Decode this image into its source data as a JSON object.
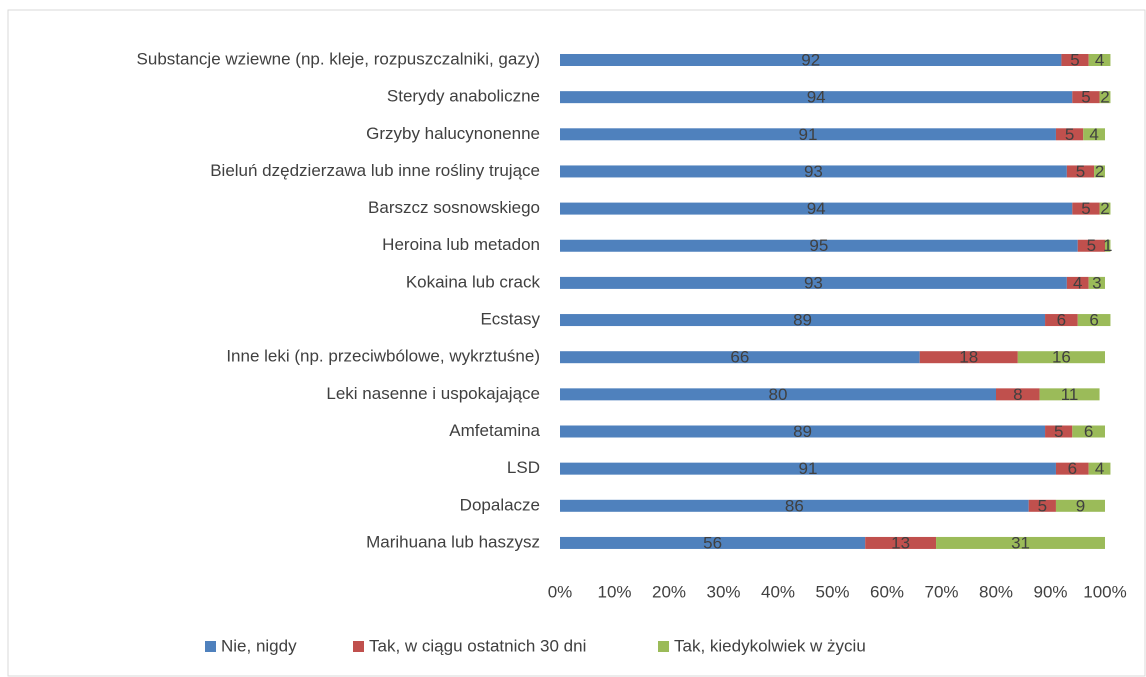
{
  "chart_data": {
    "type": "bar",
    "orientation": "horizontal",
    "stacked": true,
    "categories": [
      "Substancje wziewne (np. kleje, rozpuszczalniki, gazy)",
      "Sterydy anaboliczne",
      "Grzyby halucynonenne",
      "Bieluń dzędzierzawa lub inne rośliny trujące",
      "Barszcz sosnowskiego",
      "Heroina lub metadon",
      "Kokaina lub crack",
      "Ecstasy",
      "Inne leki (np. przeciwbólowe, wykrztuśne)",
      "Leki nasenne i uspokajające",
      "Amfetamina",
      "LSD",
      "Dopalacze",
      "Marihuana lub haszysz"
    ],
    "series": [
      {
        "name": "Nie, nigdy",
        "color": "#4f81bd",
        "values": [
          92,
          94,
          91,
          93,
          94,
          95,
          93,
          89,
          66,
          80,
          89,
          91,
          86,
          56
        ]
      },
      {
        "name": "Tak, w ciągu ostatnich 30 dni",
        "color": "#c0504d",
        "values": [
          5,
          5,
          5,
          5,
          5,
          5,
          4,
          6,
          18,
          8,
          5,
          6,
          5,
          13
        ]
      },
      {
        "name": "Tak, kiedykolwiek w życiu",
        "color": "#9bbb59",
        "values": [
          4,
          2,
          4,
          2,
          2,
          1,
          3,
          6,
          16,
          11,
          6,
          4,
          9,
          31
        ]
      }
    ],
    "xlim": [
      0,
      100
    ],
    "xticks": [
      {
        "value": 0,
        "label": "0%"
      },
      {
        "value": 10,
        "label": "10%"
      },
      {
        "value": 20,
        "label": "20%"
      },
      {
        "value": 30,
        "label": "30%"
      },
      {
        "value": 40,
        "label": "40%"
      },
      {
        "value": 50,
        "label": "50%"
      },
      {
        "value": 60,
        "label": "60%"
      },
      {
        "value": 70,
        "label": "70%"
      },
      {
        "value": 80,
        "label": "80%"
      },
      {
        "value": 90,
        "label": "90%"
      },
      {
        "value": 100,
        "label": "100%"
      }
    ],
    "grid": false,
    "legend": "bottom"
  }
}
